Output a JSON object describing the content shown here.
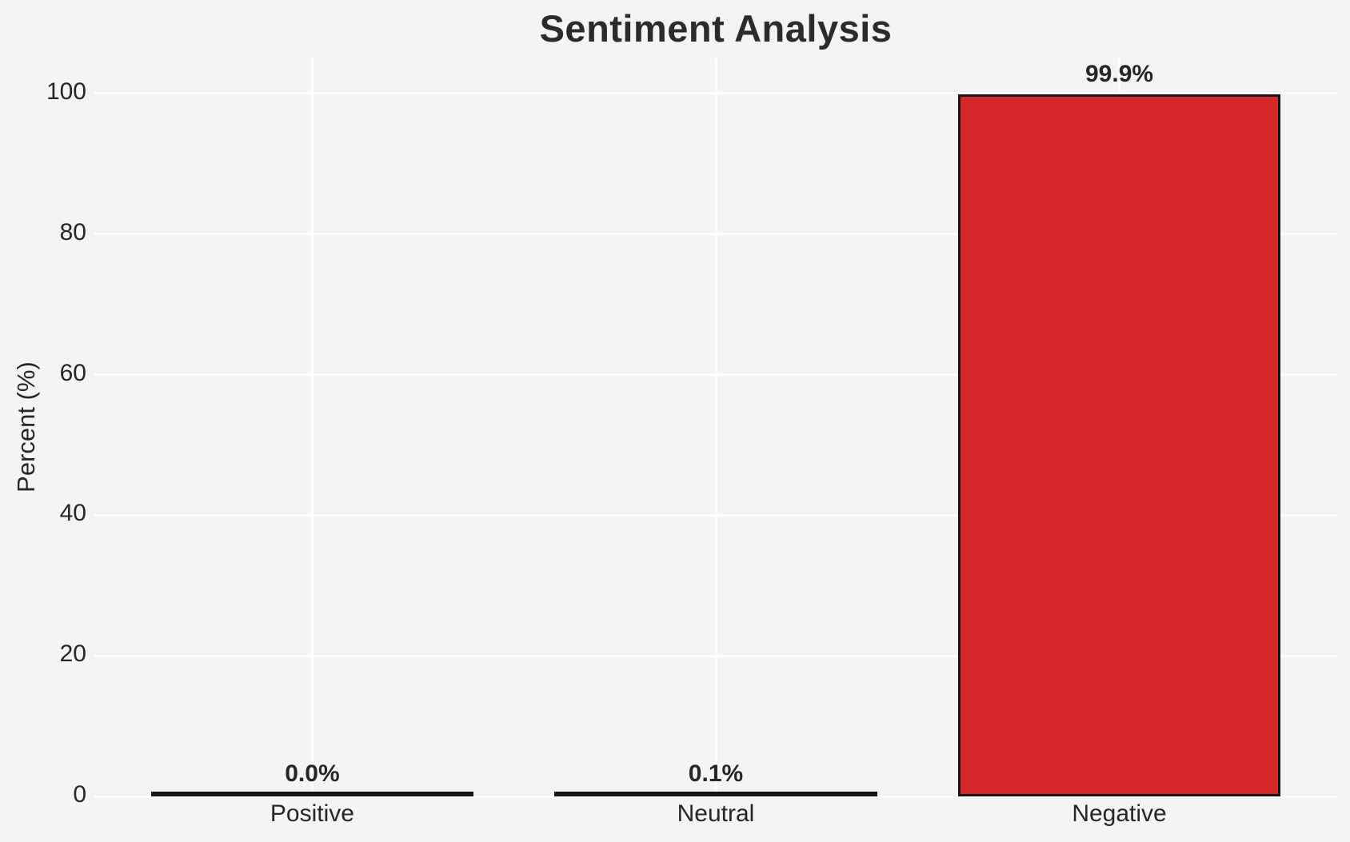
{
  "chart_data": {
    "type": "bar",
    "title": "Sentiment Analysis",
    "categories": [
      "Positive",
      "Neutral",
      "Negative"
    ],
    "values": [
      0.0,
      0.1,
      99.9
    ],
    "value_labels": [
      "0.0%",
      "0.1%",
      "99.9%"
    ],
    "xlabel": "",
    "ylabel": "Percent (%)",
    "ylim": [
      0,
      105
    ],
    "yticks": [
      0,
      20,
      40,
      60,
      80,
      100
    ],
    "ytick_labels": [
      "0",
      "20",
      "40",
      "60",
      "80",
      "100"
    ],
    "grid": true,
    "legend": false,
    "colors": {
      "background": "#f4f4f4",
      "grid": "#ffffff",
      "bar_fill": "#d62728",
      "bar_edge": "#151515",
      "text": "#262626",
      "title_text": "#2b2b2b"
    }
  }
}
